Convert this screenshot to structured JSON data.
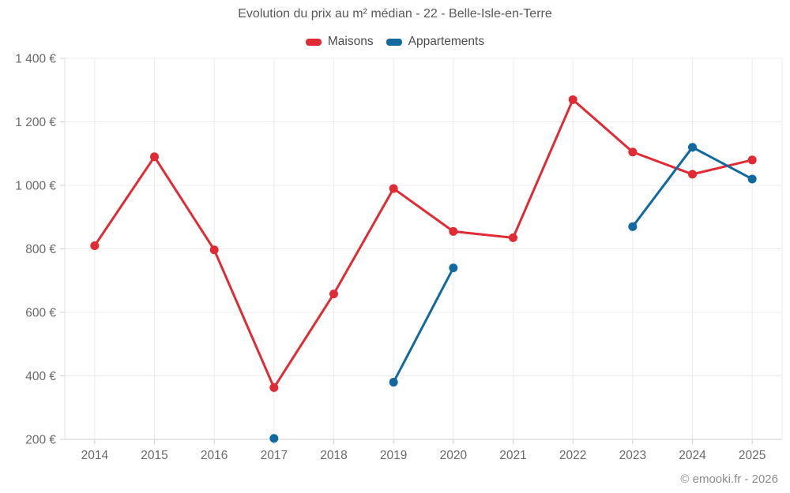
{
  "title": "Evolution du prix au m² médian - 22 - Belle-Isle-en-Terre",
  "legend": [
    {
      "label": "Maisons",
      "color": "#e02b35"
    },
    {
      "label": "Appartements",
      "color": "#10699f"
    }
  ],
  "watermark": "© emooki.fr - 2026",
  "chart_data": {
    "type": "line",
    "title": "Evolution du prix au m² médian - 22 - Belle-Isle-en-Terre",
    "categories": [
      "2014",
      "2015",
      "2016",
      "2017",
      "2018",
      "2019",
      "2020",
      "2021",
      "2022",
      "2023",
      "2024",
      "2025"
    ],
    "series": [
      {
        "name": "Maisons",
        "color": "#e02b35",
        "values": [
          810,
          1090,
          797,
          363,
          658,
          990,
          855,
          835,
          1270,
          1105,
          1035,
          1080
        ]
      },
      {
        "name": "Appartements",
        "color": "#10699f",
        "values": [
          null,
          null,
          null,
          203,
          null,
          380,
          740,
          null,
          null,
          870,
          1120,
          1020
        ]
      }
    ],
    "ylim": [
      200,
      1400
    ],
    "ytick_step": 200,
    "ytick_suffix": " €",
    "xlabel": "",
    "ylabel": "",
    "grid": true,
    "legend_position": "top",
    "colors": {
      "grid": "#ececec",
      "axis": "#cfcfcf",
      "axis_side": "#e4e4e4"
    }
  }
}
